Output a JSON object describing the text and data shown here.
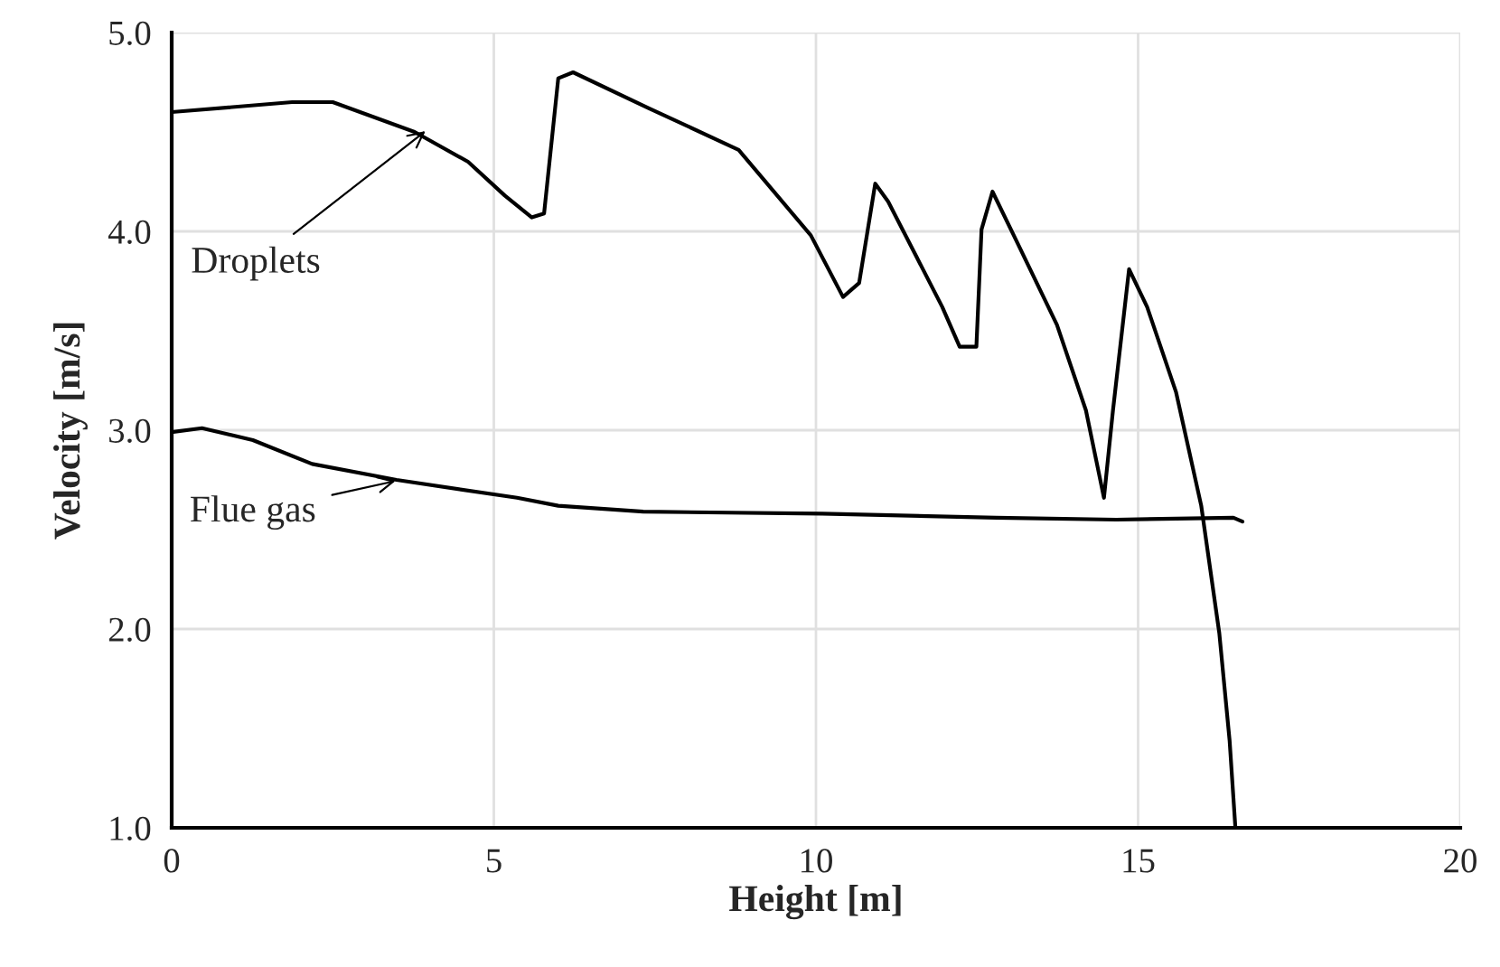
{
  "chart_data": {
    "type": "line",
    "xlabel": "Height [m]",
    "ylabel": "Velocity [m/s]",
    "series": [
      {
        "x": [
          0,
          1.87,
          2.5,
          3.77,
          4.6,
          5.17,
          5.59,
          5.78,
          6.0,
          6.23,
          7.4,
          8.8,
          9.92,
          10.42,
          10.67,
          10.92,
          11.12,
          11.96,
          12.23,
          12.49,
          12.57,
          12.74,
          13.07,
          13.74,
          14.19,
          14.47,
          14.61,
          14.86,
          15.14,
          15.59,
          15.98,
          16.26,
          16.42,
          16.51
        ],
        "values": [
          4.6,
          4.65,
          4.65,
          4.5,
          4.35,
          4.18,
          4.07,
          4.09,
          4.77,
          4.8,
          4.62,
          4.41,
          3.98,
          3.67,
          3.74,
          4.24,
          4.15,
          3.62,
          3.42,
          3.42,
          4.01,
          4.2,
          3.98,
          3.53,
          3.1,
          2.66,
          3.1,
          3.81,
          3.62,
          3.19,
          2.62,
          1.98,
          1.44,
          1.0
        ],
        "color": "#000000"
      },
      {
        "x": [
          0,
          0.47,
          1.26,
          2.18,
          3.49,
          5.36,
          6.0,
          7.32,
          10.1,
          12.8,
          14.66,
          16.48,
          16.62
        ],
        "values": [
          2.99,
          3.01,
          2.95,
          2.83,
          2.75,
          2.66,
          2.62,
          2.59,
          2.58,
          2.56,
          2.55,
          2.56,
          2.54
        ],
        "color": "#000000"
      }
    ],
    "annotations": [
      {
        "text": "Droplets",
        "x": 4.0,
        "y": 4.52
      },
      {
        "text": "Flue gas",
        "x": 3.55,
        "y": 2.75
      }
    ],
    "xlim": [
      0,
      20
    ],
    "xticks": [
      0,
      5,
      10,
      15,
      20
    ],
    "ylim": [
      1.0,
      5.0
    ],
    "yticks": [
      {
        "value": 1,
        "label": "1.0"
      },
      {
        "value": 2,
        "label": "2.0"
      },
      {
        "value": 3,
        "label": "3.0"
      },
      {
        "value": 4,
        "label": "4.0"
      },
      {
        "value": 5,
        "label": "5.0"
      }
    ],
    "grid": true,
    "legend": false,
    "line_style": "solid",
    "marker": "none"
  }
}
